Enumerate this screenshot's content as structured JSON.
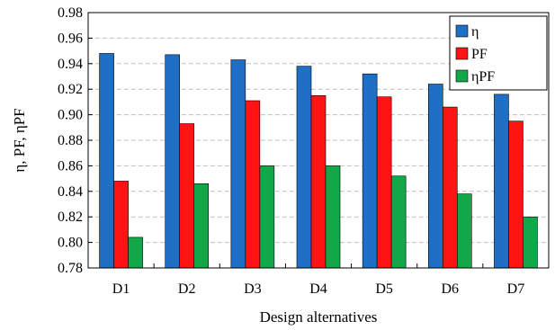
{
  "chart_data": {
    "type": "bar",
    "categories": [
      "D1",
      "D2",
      "D3",
      "D4",
      "D5",
      "D6",
      "D7"
    ],
    "series": [
      {
        "name": "η",
        "color": "#1f6fc6",
        "values": [
          0.948,
          0.947,
          0.943,
          0.938,
          0.932,
          0.924,
          0.916
        ]
      },
      {
        "name": "PF",
        "color": "#ff1414",
        "values": [
          0.848,
          0.893,
          0.911,
          0.915,
          0.914,
          0.906,
          0.895
        ]
      },
      {
        "name": "ηPF",
        "color": "#12a84a",
        "values": [
          0.804,
          0.846,
          0.86,
          0.86,
          0.852,
          0.838,
          0.82
        ]
      }
    ],
    "title": "",
    "xlabel": "Design alternatives",
    "ylabel": "η, PF, ηPF",
    "ylim": [
      0.78,
      0.98
    ],
    "yticks": [
      "0.78",
      "0.80",
      "0.82",
      "0.84",
      "0.86",
      "0.88",
      "0.90",
      "0.92",
      "0.94",
      "0.96",
      "0.98"
    ],
    "grid": true,
    "legend_position": "top-right"
  }
}
